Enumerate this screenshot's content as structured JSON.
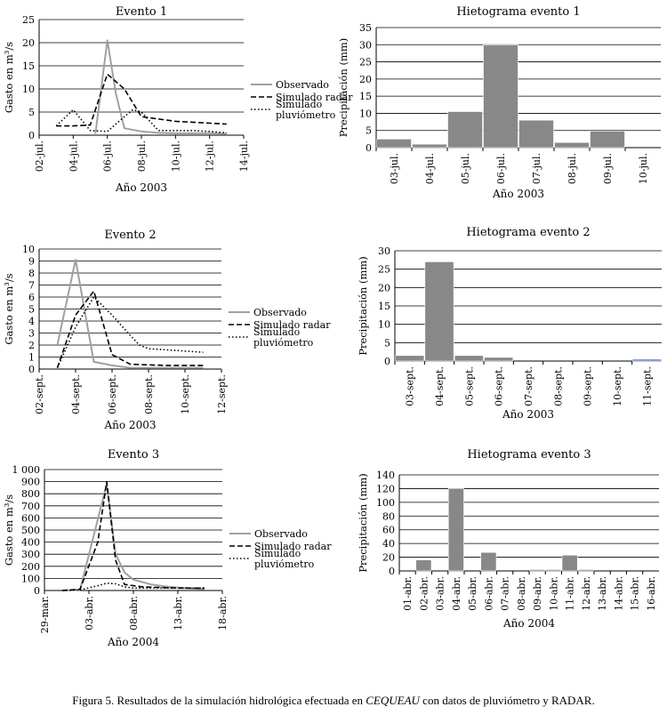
{
  "figure_caption": {
    "before": "Figura 5. Resultados de la simulación hidrológica efectuada en ",
    "italic": "CEQUEAU",
    "after": " con datos de pluviómetro y RADAR."
  },
  "colors": {
    "observado": "#a0a0a0",
    "simulado": "#000000",
    "bar": "#888888",
    "bar_highlight": "#5b7fbf",
    "grid": "#000000"
  },
  "chart_data": [
    {
      "id": "flow1",
      "type": "line",
      "title": "Evento 1",
      "xlabel": "Año 2003",
      "ylabel": "Gasto en m³/s",
      "x_ticks": [
        2,
        4,
        6,
        8,
        10,
        12,
        14
      ],
      "x_tick_labels": [
        "02-jul.",
        "04-jul.",
        "06-jul.",
        "08-jul.",
        "10-jul.",
        "12-jul.",
        "14-jul."
      ],
      "xlim": [
        2,
        14
      ],
      "ylim": [
        0,
        25
      ],
      "y_ticks": [
        0,
        5,
        10,
        15,
        20,
        25
      ],
      "y_tick_labels": [
        "0",
        "5",
        "10",
        "15",
        "20",
        "25"
      ],
      "legend": [
        "Observado",
        "Simulado radar",
        "Simulado pluviómetro"
      ],
      "series": [
        {
          "name": "Observado",
          "style": "solid",
          "x": [
            5.3,
            6,
            6.5,
            7,
            8,
            9,
            10,
            11,
            12,
            13
          ],
          "y": [
            0.3,
            20.5,
            9,
            1.5,
            0.8,
            0.5,
            0.4,
            0.4,
            0.4,
            0.3
          ]
        },
        {
          "name": "Simulado radar",
          "style": "dashed",
          "x": [
            3,
            4,
            5,
            6,
            7,
            8,
            9,
            10,
            11,
            12,
            13
          ],
          "y": [
            2,
            2,
            2.2,
            13.2,
            10,
            4,
            3.5,
            3,
            2.8,
            2.6,
            2.4
          ]
        },
        {
          "name": "Simulado pluviómetro",
          "style": "dotted",
          "x": [
            3,
            4,
            5,
            6,
            7,
            7.5,
            8,
            9,
            10,
            11,
            12,
            13
          ],
          "y": [
            2,
            5.5,
            1,
            0.8,
            4,
            5.5,
            5,
            1,
            1,
            1,
            0.8,
            0.5
          ]
        }
      ]
    },
    {
      "id": "hist1",
      "type": "bar",
      "title": "Hietograma evento 1",
      "xlabel": "Año 2003",
      "ylabel": "Precipitación (mm)",
      "categories": [
        "03-jul.",
        "04-jul.",
        "05-jul.",
        "06-jul.",
        "07-jul.",
        "08-jul.",
        "09-jul.",
        "10-jul."
      ],
      "values": [
        2.5,
        1,
        10.5,
        30,
        8,
        1.5,
        4.8,
        0
      ],
      "ylim": [
        0,
        35
      ],
      "y_ticks": [
        0,
        5,
        10,
        15,
        20,
        25,
        30,
        35
      ],
      "y_tick_labels": [
        "0",
        "5",
        "10",
        "15",
        "20",
        "25",
        "30",
        "35"
      ]
    },
    {
      "id": "flow2",
      "type": "line",
      "title": "Evento 2",
      "xlabel": "Año 2003",
      "ylabel": "Gasto en m³/s",
      "x_ticks": [
        2,
        4,
        6,
        8,
        10,
        12
      ],
      "x_tick_labels": [
        "02-sept.",
        "04-sept.",
        "06-sept.",
        "08-sept.",
        "10-sept.",
        "12-sept."
      ],
      "xlim": [
        2,
        12
      ],
      "ylim": [
        0,
        10
      ],
      "y_ticks": [
        0,
        1,
        2,
        3,
        4,
        5,
        6,
        7,
        8,
        9,
        10
      ],
      "y_tick_labels": [
        "0",
        "1",
        "2",
        "3",
        "4",
        "5",
        "6",
        "7",
        "8",
        "9",
        "10"
      ],
      "legend": [
        "Observado",
        "Simulado radar",
        "Simulado pluviómetro"
      ],
      "series": [
        {
          "name": "Observado",
          "style": "solid",
          "x": [
            3,
            4,
            5,
            6,
            7,
            8,
            9,
            10,
            11
          ],
          "y": [
            2,
            9.1,
            0.6,
            0.3,
            0.1,
            0.1,
            0.1,
            0.1,
            0.1
          ]
        },
        {
          "name": "Simulado radar",
          "style": "dashed",
          "x": [
            3,
            4,
            5,
            6,
            7,
            8,
            9,
            10,
            11
          ],
          "y": [
            0.1,
            4.5,
            6.5,
            1.2,
            0.4,
            0.35,
            0.3,
            0.3,
            0.3
          ]
        },
        {
          "name": "Simulado pluviómetro",
          "style": "dotted",
          "x": [
            3,
            4,
            5,
            6,
            7,
            7.5,
            8,
            9,
            10,
            11
          ],
          "y": [
            0.1,
            3.5,
            6,
            4.5,
            2.8,
            2,
            1.7,
            1.6,
            1.5,
            1.4
          ]
        }
      ]
    },
    {
      "id": "hist2",
      "type": "bar",
      "title": "Hietograma evento 2",
      "xlabel": "Año 2003",
      "ylabel": "Precipitación (mm)",
      "categories": [
        "03-sept.",
        "04-sept.",
        "05-sept.",
        "06-sept.",
        "07-sept.",
        "08-sept.",
        "09-sept.",
        "10-sept.",
        "11-sept."
      ],
      "values": [
        1.5,
        27,
        1.5,
        1,
        0,
        0,
        0,
        0,
        0.5
      ],
      "ylim": [
        0,
        30
      ],
      "y_ticks": [
        0,
        5,
        10,
        15,
        20,
        25,
        30
      ],
      "y_tick_labels": [
        "0",
        "5",
        "10",
        "15",
        "20",
        "25",
        "30"
      ]
    },
    {
      "id": "flow3",
      "type": "line",
      "title": "Evento 3",
      "xlabel": "Año 2004",
      "ylabel": "Gasto en m³/s",
      "x_ticks": [
        29,
        34,
        39,
        44,
        49
      ],
      "x_tick_labels": [
        "29-mar.",
        "03-abr.",
        "08-abr.",
        "13-abr.",
        "18-abr."
      ],
      "xlim": [
        29,
        49
      ],
      "ylim": [
        0,
        1000
      ],
      "y_ticks": [
        0,
        100,
        200,
        300,
        400,
        500,
        600,
        700,
        800,
        900,
        1000
      ],
      "y_tick_labels": [
        "0",
        "100",
        "200",
        "300",
        "400",
        "500",
        "600",
        "700",
        "800",
        "900",
        "1 000"
      ],
      "legend": [
        "Observado",
        "Simulado radar",
        "Simulado pluviómetro"
      ],
      "series": [
        {
          "name": "Observado",
          "style": "solid",
          "x": [
            31,
            33,
            36,
            37,
            38,
            39,
            40,
            41,
            42,
            43,
            44,
            45,
            46,
            47
          ],
          "y": [
            0,
            5,
            880,
            300,
            150,
            90,
            70,
            50,
            40,
            30,
            25,
            20,
            15,
            10
          ]
        },
        {
          "name": "Simulado radar",
          "style": "dashed",
          "x": [
            31,
            33,
            35,
            36,
            37,
            38,
            39,
            40,
            42,
            44,
            46,
            47
          ],
          "y": [
            0,
            10,
            400,
            900,
            250,
            50,
            40,
            30,
            25,
            20,
            20,
            20
          ]
        },
        {
          "name": "Simulado pluviómetro",
          "style": "dotted",
          "x": [
            31,
            33,
            35,
            36,
            37,
            38,
            39,
            40,
            42,
            44,
            46,
            47
          ],
          "y": [
            0,
            5,
            40,
            60,
            55,
            30,
            20,
            20,
            20,
            20,
            20,
            20
          ]
        }
      ]
    },
    {
      "id": "hist3",
      "type": "bar",
      "title": "Hietograma evento 3",
      "xlabel": "Año 2004",
      "ylabel": "Precipitación (mm)",
      "categories": [
        "01-abr.",
        "02-abr.",
        "03-abr.",
        "04-abr.",
        "05-abr.",
        "06-abr.",
        "07-abr.",
        "08-abr.",
        "09-abr.",
        "10-abr.",
        "11-abr.",
        "12-abr.",
        "13-abr.",
        "14-abr.",
        "15-abr.",
        "16-abr."
      ],
      "values": [
        0,
        16,
        0,
        120,
        0,
        27,
        0,
        0,
        2,
        2,
        23,
        2,
        0,
        0,
        0,
        0
      ],
      "ylim": [
        0,
        140
      ],
      "y_ticks": [
        0,
        20,
        40,
        60,
        80,
        100,
        120,
        140
      ],
      "y_tick_labels": [
        "0",
        "20",
        "40",
        "60",
        "80",
        "100",
        "120",
        "140"
      ]
    }
  ]
}
